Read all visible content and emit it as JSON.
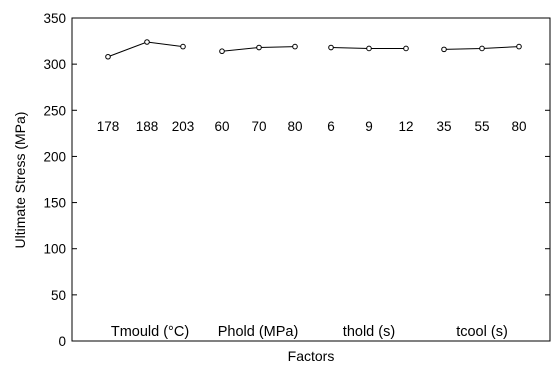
{
  "chart_data": {
    "type": "line",
    "title": "",
    "xlabel": "Factors",
    "ylabel": "Ultimate Stress  (MPa)",
    "ylim": [
      0,
      350
    ],
    "yticks": [
      "0",
      "50",
      "100",
      "150",
      "200",
      "250",
      "300",
      "350"
    ],
    "grid": false,
    "legend": "none",
    "line_color": "#000000",
    "marker": "circle",
    "groups": [
      {
        "factor": "Tmould (°C)",
        "levels": [
          "178",
          "188",
          "203"
        ],
        "values": [
          308,
          324,
          319
        ]
      },
      {
        "factor": "Phold (MPa)",
        "levels": [
          "60",
          "70",
          "80"
        ],
        "values": [
          314,
          318,
          319
        ]
      },
      {
        "factor": "thold (s)",
        "levels": [
          "6",
          "9",
          "12"
        ],
        "values": [
          318,
          317,
          317
        ]
      },
      {
        "factor": "tcool (s)",
        "levels": [
          "35",
          "55",
          "80"
        ],
        "values": [
          316,
          317,
          319
        ]
      }
    ]
  }
}
